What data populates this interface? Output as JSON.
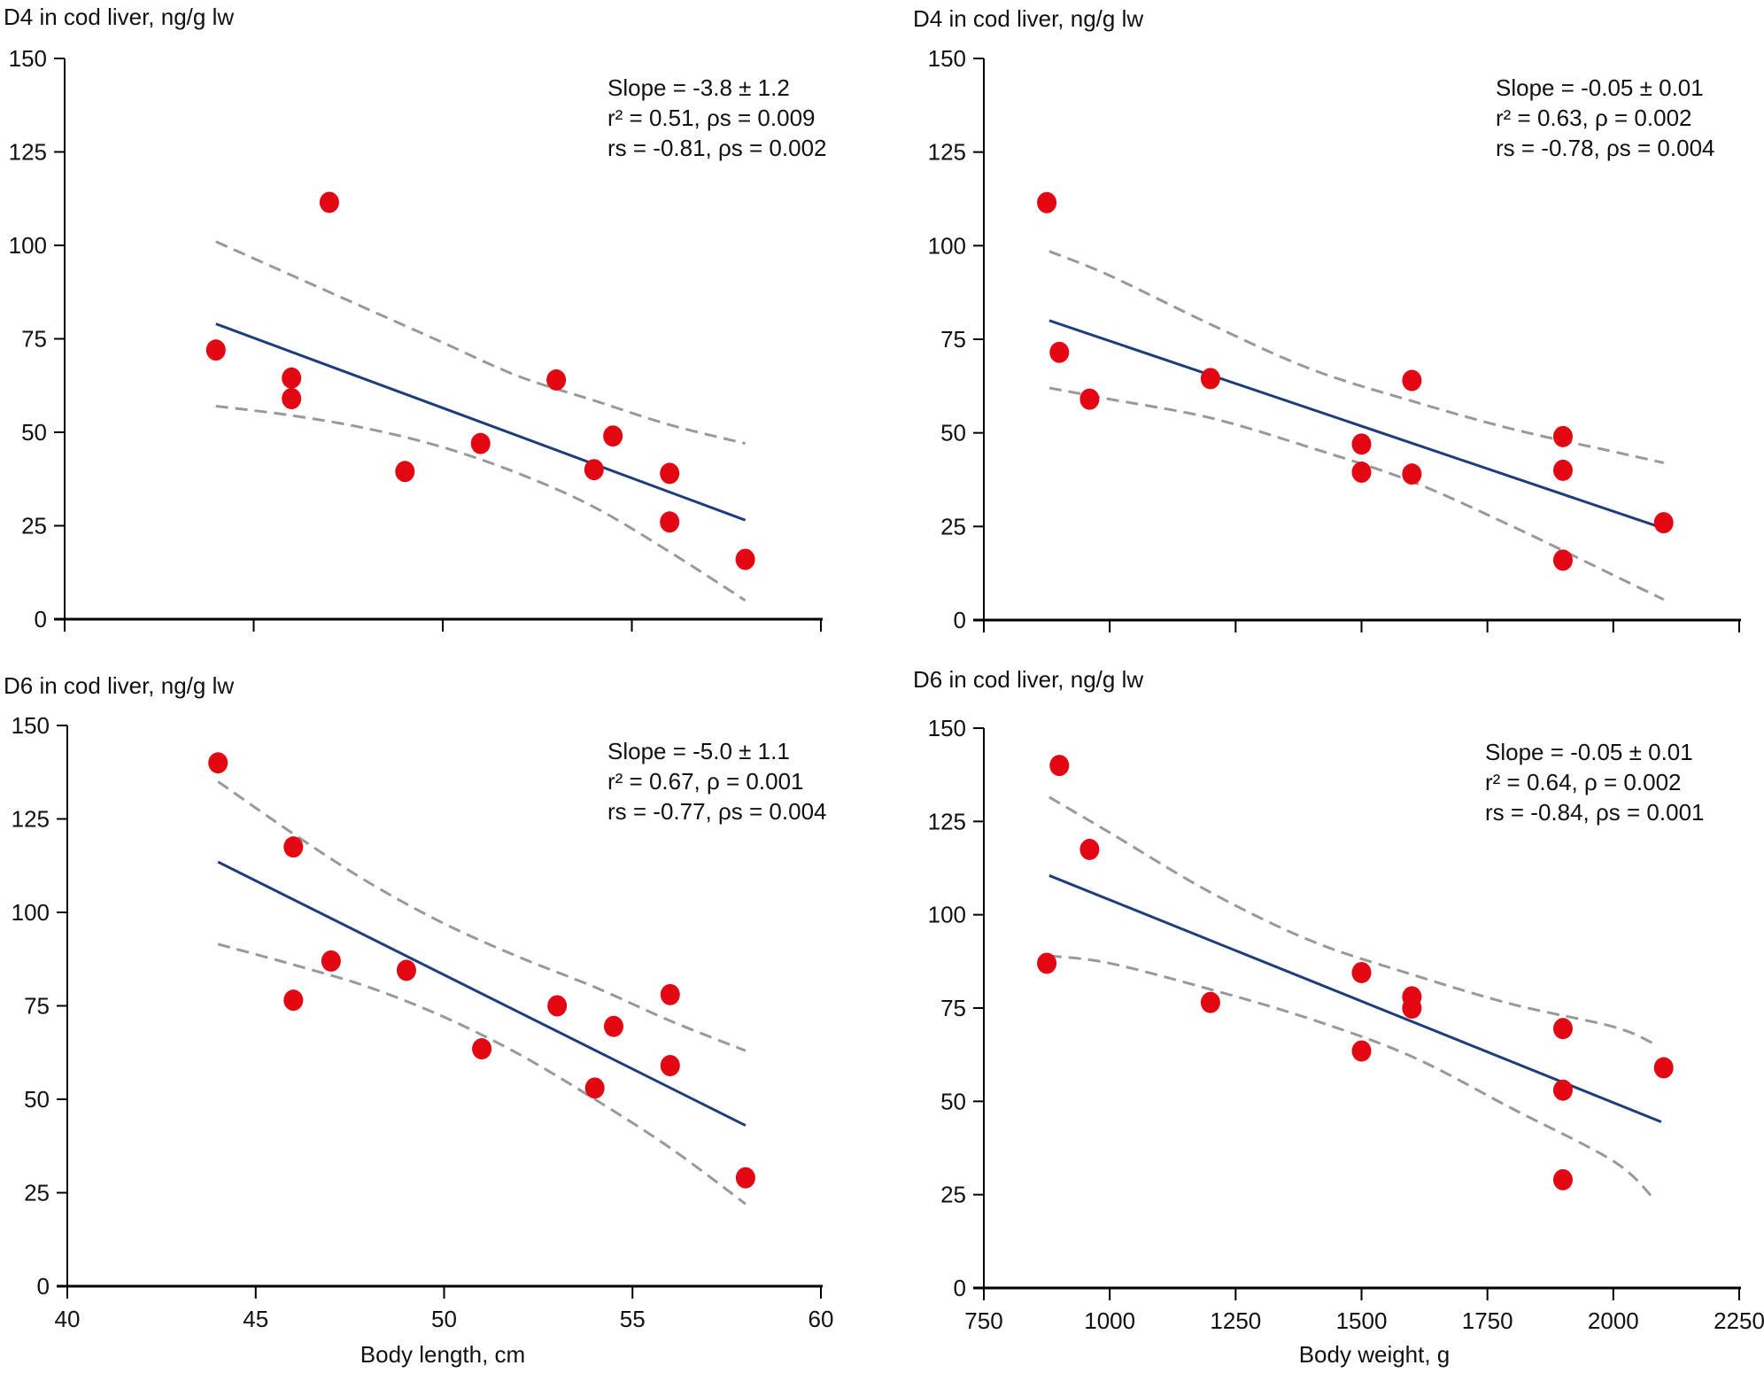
{
  "chart_data": [
    {
      "id": "d4-length",
      "type": "scatter",
      "title": "D4 in cod liver, ng/g lw",
      "xlabel": "",
      "ylabel": "D4 in cod liver, ng/g lw",
      "xlim": [
        40,
        60
      ],
      "ylim": [
        0,
        150
      ],
      "xticks": [
        40,
        45,
        50,
        55,
        60
      ],
      "xtick_labels": [],
      "yticks": [
        0,
        25,
        50,
        75,
        100,
        125,
        150
      ],
      "ytick_labels": [
        "0",
        "25",
        "50",
        "75",
        "100",
        "125",
        "150"
      ],
      "grid": false,
      "annotation": [
        "Slope = -3.8 ± 1.2",
        "r² = 0.51, ρs = 0.009",
        "rs = -0.81, ρs = 0.002"
      ],
      "points": [
        [
          44,
          72
        ],
        [
          46,
          64.5
        ],
        [
          46,
          59
        ],
        [
          47,
          111.5
        ],
        [
          49,
          39.5
        ],
        [
          51,
          47
        ],
        [
          53,
          64
        ],
        [
          54,
          40
        ],
        [
          54.5,
          49
        ],
        [
          56,
          39
        ],
        [
          56,
          26
        ],
        [
          58,
          16
        ]
      ],
      "fit_line": [
        [
          44,
          79
        ],
        [
          58,
          26.5
        ]
      ],
      "ci_upper": [
        [
          44,
          101
        ],
        [
          46,
          92
        ],
        [
          48,
          83
        ],
        [
          50,
          74
        ],
        [
          52,
          65
        ],
        [
          54,
          58.5
        ],
        [
          56,
          52
        ],
        [
          58,
          47
        ]
      ],
      "ci_lower": [
        [
          44,
          57
        ],
        [
          46,
          54.5
        ],
        [
          48,
          51
        ],
        [
          50,
          46
        ],
        [
          52,
          39
        ],
        [
          54,
          30
        ],
        [
          56,
          18
        ],
        [
          58,
          5
        ]
      ],
      "colors": {
        "points": "#e30613",
        "fit": "#1f3d7a",
        "ci": "#999999"
      }
    },
    {
      "id": "d4-weight",
      "type": "scatter",
      "title": "D4 in cod liver, ng/g lw",
      "xlabel": "",
      "ylabel": "D4 in cod liver, ng/g lw",
      "xlim": [
        750,
        2250
      ],
      "ylim": [
        0,
        150
      ],
      "xticks": [
        750,
        1000,
        1250,
        1500,
        1750,
        2000,
        2250
      ],
      "xtick_labels": [],
      "yticks": [
        0,
        25,
        50,
        75,
        100,
        125,
        150
      ],
      "ytick_labels": [
        "0",
        "25",
        "50",
        "75",
        "100",
        "125",
        "150"
      ],
      "grid": false,
      "annotation": [
        "Slope = -0.05 ± 0.01",
        "r² = 0.63, ρ = 0.002",
        "rs = -0.78, ρs = 0.004"
      ],
      "points": [
        [
          875,
          111.5
        ],
        [
          900,
          71.5
        ],
        [
          960,
          59
        ],
        [
          1200,
          64.5
        ],
        [
          1500,
          47
        ],
        [
          1500,
          39.5
        ],
        [
          1600,
          64
        ],
        [
          1600,
          39
        ],
        [
          1900,
          49
        ],
        [
          1900,
          40
        ],
        [
          1900,
          16
        ],
        [
          2100,
          26
        ]
      ],
      "fit_line": [
        [
          880,
          80
        ],
        [
          2100,
          24.5
        ]
      ],
      "ci_upper": [
        [
          880,
          98.5
        ],
        [
          1000,
          92
        ],
        [
          1200,
          79
        ],
        [
          1400,
          67
        ],
        [
          1600,
          58.5
        ],
        [
          1800,
          51
        ],
        [
          2000,
          45
        ],
        [
          2100,
          42
        ]
      ],
      "ci_lower": [
        [
          880,
          62
        ],
        [
          1000,
          59
        ],
        [
          1200,
          54
        ],
        [
          1400,
          46
        ],
        [
          1600,
          37
        ],
        [
          1800,
          25
        ],
        [
          2000,
          12
        ],
        [
          2100,
          5.5
        ]
      ],
      "colors": {
        "points": "#e30613",
        "fit": "#1f3d7a",
        "ci": "#999999"
      }
    },
    {
      "id": "d6-length",
      "type": "scatter",
      "title": "D6 in cod liver, ng/g lw",
      "xlabel": "Body length, cm",
      "ylabel": "D6 in cod liver, ng/g lw",
      "xlim": [
        40,
        60
      ],
      "ylim": [
        0,
        150
      ],
      "xticks": [
        40,
        45,
        50,
        55,
        60
      ],
      "xtick_labels": [
        "40",
        "45",
        "50",
        "55",
        "60"
      ],
      "yticks": [
        0,
        25,
        50,
        75,
        100,
        125,
        150
      ],
      "ytick_labels": [
        "0",
        "25",
        "50",
        "75",
        "100",
        "125",
        "150"
      ],
      "grid": false,
      "annotation": [
        "Slope = -5.0 ± 1.1",
        "r² = 0.67, ρ = 0.001",
        "rs = -0.77, ρs = 0.004"
      ],
      "points": [
        [
          44,
          140
        ],
        [
          46,
          117.5
        ],
        [
          46,
          76.5
        ],
        [
          47,
          87
        ],
        [
          49,
          84.5
        ],
        [
          51,
          63.5
        ],
        [
          53,
          75
        ],
        [
          54,
          53
        ],
        [
          54.5,
          69.5
        ],
        [
          56,
          78
        ],
        [
          56,
          59
        ],
        [
          58,
          29
        ]
      ],
      "fit_line": [
        [
          44,
          113.5
        ],
        [
          58,
          43
        ]
      ],
      "ci_upper": [
        [
          44,
          135
        ],
        [
          46,
          121
        ],
        [
          48,
          108
        ],
        [
          50,
          97
        ],
        [
          52,
          88
        ],
        [
          54,
          80
        ],
        [
          56,
          71
        ],
        [
          58,
          63
        ]
      ],
      "ci_lower": [
        [
          44,
          91.5
        ],
        [
          46,
          86
        ],
        [
          48,
          80
        ],
        [
          50,
          72
        ],
        [
          52,
          62
        ],
        [
          54,
          50
        ],
        [
          56,
          37
        ],
        [
          58,
          22
        ]
      ],
      "colors": {
        "points": "#e30613",
        "fit": "#1f3d7a",
        "ci": "#999999"
      }
    },
    {
      "id": "d6-weight",
      "type": "scatter",
      "title": "D6 in cod liver, ng/g lw",
      "xlabel": "Body weight, g",
      "ylabel": "D6 in cod liver, ng/g lw",
      "xlim": [
        750,
        2250
      ],
      "ylim": [
        0,
        150
      ],
      "xticks": [
        750,
        1000,
        1250,
        1500,
        1750,
        2000,
        2250
      ],
      "xtick_labels": [
        "750",
        "1000",
        "1250",
        "1500",
        "1750",
        "2000",
        "2250"
      ],
      "yticks": [
        0,
        25,
        50,
        75,
        100,
        125,
        150
      ],
      "ytick_labels": [
        "0",
        "25",
        "50",
        "75",
        "100",
        "125",
        "150"
      ],
      "grid": false,
      "annotation": [
        "Slope = -0.05 ± 0.01",
        "r² = 0.64, ρ = 0.002",
        "rs = -0.84, ρs = 0.001"
      ],
      "points": [
        [
          875,
          87
        ],
        [
          900,
          140
        ],
        [
          960,
          117.5
        ],
        [
          1200,
          76.5
        ],
        [
          1500,
          84.5
        ],
        [
          1500,
          63.5
        ],
        [
          1600,
          78
        ],
        [
          1600,
          75
        ],
        [
          1900,
          69.5
        ],
        [
          1900,
          53
        ],
        [
          1900,
          29
        ],
        [
          2100,
          59
        ]
      ],
      "fit_line": [
        [
          880,
          110.5
        ],
        [
          2095,
          44.5
        ]
      ],
      "ci_upper": [
        [
          880,
          131.5
        ],
        [
          1000,
          122
        ],
        [
          1200,
          106
        ],
        [
          1400,
          93
        ],
        [
          1600,
          84
        ],
        [
          1800,
          76
        ],
        [
          2000,
          70
        ],
        [
          2080,
          65.5
        ]
      ],
      "ci_lower": [
        [
          880,
          89
        ],
        [
          1000,
          87
        ],
        [
          1200,
          80
        ],
        [
          1400,
          72
        ],
        [
          1600,
          62
        ],
        [
          1800,
          48
        ],
        [
          2000,
          34
        ],
        [
          2080,
          24
        ]
      ],
      "colors": {
        "points": "#e30613",
        "fit": "#1f3d7a",
        "ci": "#999999"
      }
    }
  ]
}
